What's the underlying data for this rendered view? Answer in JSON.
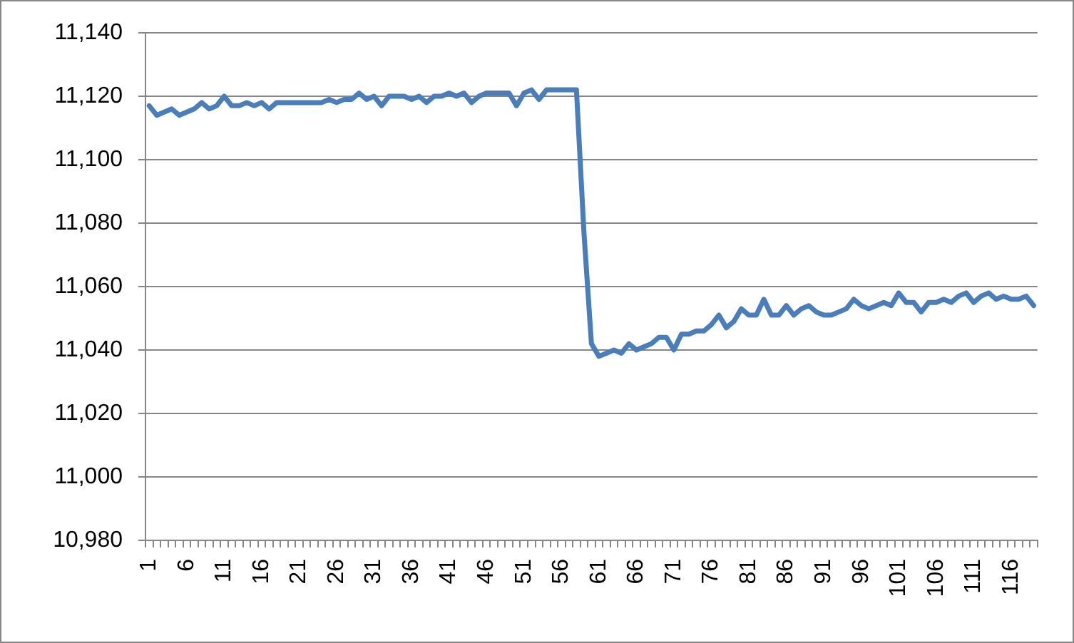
{
  "chart_data": {
    "type": "line",
    "categories": [
      "1",
      null,
      null,
      null,
      null,
      "6",
      null,
      null,
      null,
      null,
      "11",
      null,
      null,
      null,
      null,
      "16",
      null,
      null,
      null,
      null,
      "21",
      null,
      null,
      null,
      null,
      "26",
      null,
      null,
      null,
      null,
      "31",
      null,
      null,
      null,
      null,
      "36",
      null,
      null,
      null,
      null,
      "41",
      null,
      null,
      null,
      null,
      "46",
      null,
      null,
      null,
      null,
      "51",
      null,
      null,
      null,
      null,
      "56",
      null,
      null,
      null,
      null,
      "61",
      null,
      null,
      null,
      null,
      "66",
      null,
      null,
      null,
      null,
      "71",
      null,
      null,
      null,
      null,
      "76",
      null,
      null,
      null,
      null,
      "81",
      null,
      null,
      null,
      null,
      "86",
      null,
      null,
      null,
      null,
      "91",
      null,
      null,
      null,
      null,
      "96",
      null,
      null,
      null,
      null,
      "101",
      null,
      null,
      null,
      null,
      "106",
      null,
      null,
      null,
      null,
      "111",
      null,
      null,
      null,
      null,
      "116",
      null,
      null,
      null
    ],
    "series": [
      {
        "color": "#4a7ebb",
        "values": [
          11117,
          11114,
          11115,
          11116,
          11114,
          11115,
          11116,
          11118,
          11116,
          11117,
          11120,
          11117,
          11117,
          11118,
          11117,
          11118,
          11116,
          11118,
          11118,
          11118,
          11118,
          11118,
          11118,
          11118,
          11119,
          11118,
          11119,
          11119,
          11121,
          11119,
          11120,
          11117,
          11120,
          11120,
          11120,
          11119,
          11120,
          11118,
          11120,
          11120,
          11121,
          11120,
          11121,
          11118,
          11120,
          11121,
          11121,
          11121,
          11121,
          11117,
          11121,
          11122,
          11119,
          11122,
          11122,
          11122,
          11122,
          11122,
          11077,
          11042,
          11038,
          11039,
          11040,
          11039,
          11042,
          11040,
          11041,
          11042,
          11044,
          11044,
          11040,
          11045,
          11045,
          11046,
          11046,
          11048,
          11051,
          11047,
          11049,
          11053,
          11051,
          11051,
          11056,
          11051,
          11051,
          11054,
          11051,
          11053,
          11054,
          11052,
          11051,
          11051,
          11052,
          11053,
          11056,
          11054,
          11053,
          11054,
          11055,
          11054,
          11058,
          11055,
          11055,
          11052,
          11055,
          11055,
          11056,
          11055,
          11057,
          11058,
          11055,
          11057,
          11058,
          11056,
          11057,
          11056,
          11056,
          11057,
          11054
        ]
      }
    ],
    "ylim": [
      10980,
      11140
    ],
    "yticks": [
      {
        "value": 10980,
        "label": "10,980"
      },
      {
        "value": 11000,
        "label": "11,000"
      },
      {
        "value": 11020,
        "label": "11,020"
      },
      {
        "value": 11040,
        "label": "11,040"
      },
      {
        "value": 11060,
        "label": "11,060"
      },
      {
        "value": 11080,
        "label": "11,080"
      },
      {
        "value": 11100,
        "label": "11,100"
      },
      {
        "value": 11120,
        "label": "11,120"
      },
      {
        "value": 11140,
        "label": "11,140"
      }
    ],
    "grid": "y",
    "marker": "none",
    "line_style": "solid"
  }
}
